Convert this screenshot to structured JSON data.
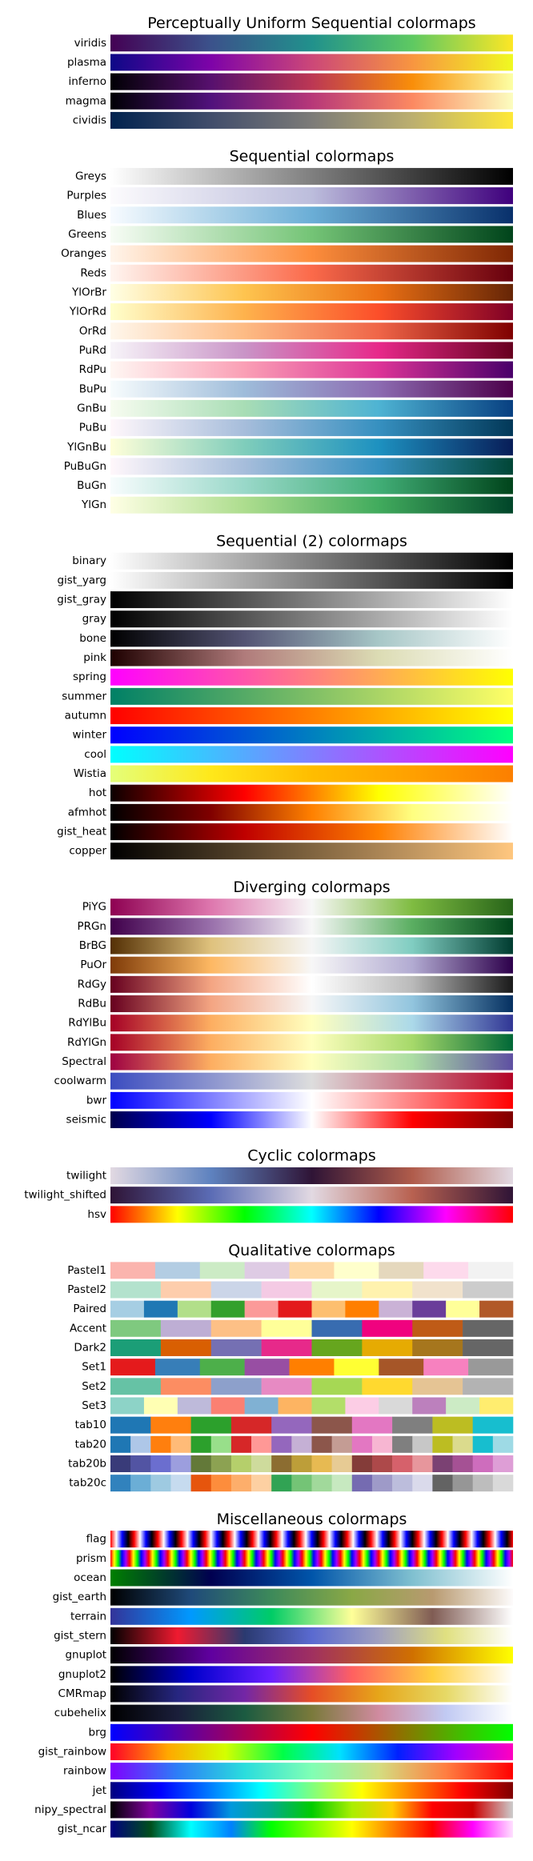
{
  "sections": [
    {
      "title": "Perceptually Uniform Sequential colormaps",
      "colormaps": [
        {
          "name": "viridis",
          "colors": [
            "#440154",
            "#3b528b",
            "#21918c",
            "#5ec962",
            "#fde725"
          ]
        },
        {
          "name": "plasma",
          "colors": [
            "#0d0887",
            "#7e03a8",
            "#cc4778",
            "#f89540",
            "#f0f921"
          ]
        },
        {
          "name": "inferno",
          "colors": [
            "#000004",
            "#57106e",
            "#bc3754",
            "#f98e09",
            "#fcffa4"
          ]
        },
        {
          "name": "magma",
          "colors": [
            "#000004",
            "#51127c",
            "#b73779",
            "#fc8961",
            "#fcfdbf"
          ]
        },
        {
          "name": "cividis",
          "colors": [
            "#00224e",
            "#414d6b",
            "#7c7b78",
            "#bcaf6f",
            "#fee838"
          ]
        }
      ]
    },
    {
      "title": "Sequential colormaps",
      "colormaps": [
        {
          "name": "Greys",
          "colors": [
            "#ffffff",
            "#000000"
          ]
        },
        {
          "name": "Purples",
          "colors": [
            "#fcfbfd",
            "#bcbddc",
            "#3f007d"
          ]
        },
        {
          "name": "Blues",
          "colors": [
            "#f7fbff",
            "#6baed6",
            "#08306b"
          ]
        },
        {
          "name": "Greens",
          "colors": [
            "#f7fcf5",
            "#74c476",
            "#00441b"
          ]
        },
        {
          "name": "Oranges",
          "colors": [
            "#fff5eb",
            "#fd8d3c",
            "#7f2704"
          ]
        },
        {
          "name": "Reds",
          "colors": [
            "#fff5f0",
            "#fb6a4a",
            "#67000d"
          ]
        },
        {
          "name": "YlOrBr",
          "colors": [
            "#ffffe5",
            "#fec44f",
            "#ec7014",
            "#662506"
          ]
        },
        {
          "name": "YlOrRd",
          "colors": [
            "#ffffcc",
            "#feb24c",
            "#fc4e2a",
            "#800026"
          ]
        },
        {
          "name": "OrRd",
          "colors": [
            "#fff7ec",
            "#fdbb84",
            "#ef6548",
            "#7f0000"
          ]
        },
        {
          "name": "PuRd",
          "colors": [
            "#f7f4f9",
            "#c994c7",
            "#e7298a",
            "#67001f"
          ]
        },
        {
          "name": "RdPu",
          "colors": [
            "#fff7f3",
            "#fa9fb5",
            "#dd3497",
            "#49006a"
          ]
        },
        {
          "name": "BuPu",
          "colors": [
            "#f7fcfd",
            "#9ebcda",
            "#8c6bb1",
            "#4d004b"
          ]
        },
        {
          "name": "GnBu",
          "colors": [
            "#f7fcf0",
            "#a8ddb5",
            "#4eb3d3",
            "#084081"
          ]
        },
        {
          "name": "PuBu",
          "colors": [
            "#fff7fb",
            "#a6bddb",
            "#3690c0",
            "#023858"
          ]
        },
        {
          "name": "YlGnBu",
          "colors": [
            "#ffffd9",
            "#7fcdbb",
            "#1d91c0",
            "#081d58"
          ]
        },
        {
          "name": "PuBuGn",
          "colors": [
            "#fff7fb",
            "#a6bddb",
            "#3690c0",
            "#014636"
          ]
        },
        {
          "name": "BuGn",
          "colors": [
            "#f7fcfd",
            "#99d8c9",
            "#41ae76",
            "#00441b"
          ]
        },
        {
          "name": "YlGn",
          "colors": [
            "#ffffe5",
            "#addd8e",
            "#41ab5d",
            "#004529"
          ]
        }
      ]
    },
    {
      "title": "Sequential (2) colormaps",
      "colormaps": [
        {
          "name": "binary",
          "colors": [
            "#ffffff",
            "#000000"
          ]
        },
        {
          "name": "gist_yarg",
          "colors": [
            "#ffffff",
            "#000000"
          ]
        },
        {
          "name": "gist_gray",
          "colors": [
            "#000000",
            "#ffffff"
          ]
        },
        {
          "name": "gray",
          "colors": [
            "#000000",
            "#ffffff"
          ]
        },
        {
          "name": "bone",
          "colors": [
            "#000000",
            "#545474",
            "#a7c7c7",
            "#ffffff"
          ]
        },
        {
          "name": "pink",
          "colors": [
            "#1e0000",
            "#b07b7b",
            "#dcdcb4",
            "#ffffff"
          ]
        },
        {
          "name": "spring",
          "colors": [
            "#ff00ff",
            "#ffff00"
          ]
        },
        {
          "name": "summer",
          "colors": [
            "#008066",
            "#ffff66"
          ]
        },
        {
          "name": "autumn",
          "colors": [
            "#ff0000",
            "#ffff00"
          ]
        },
        {
          "name": "winter",
          "colors": [
            "#0000ff",
            "#00ff80"
          ]
        },
        {
          "name": "cool",
          "colors": [
            "#00ffff",
            "#ff00ff"
          ]
        },
        {
          "name": "Wistia",
          "colors": [
            "#e4ff7a",
            "#ffe81a",
            "#ffbd00",
            "#ffa000",
            "#fc7f00"
          ]
        },
        {
          "name": "hot",
          "colors": [
            "#0b0000",
            "#ff0000",
            "#ffff00",
            "#ffffff"
          ]
        },
        {
          "name": "afmhot",
          "colors": [
            "#000000",
            "#800000",
            "#ff8000",
            "#ffff80",
            "#ffffff"
          ]
        },
        {
          "name": "gist_heat",
          "colors": [
            "#000000",
            "#bf0000",
            "#ff7f00",
            "#ffffff"
          ]
        },
        {
          "name": "copper",
          "colors": [
            "#000000",
            "#ffc77f"
          ]
        }
      ]
    },
    {
      "title": "Diverging colormaps",
      "colormaps": [
        {
          "name": "PiYG",
          "colors": [
            "#8e0152",
            "#de77ae",
            "#f7f7f7",
            "#7fbc41",
            "#276419"
          ]
        },
        {
          "name": "PRGn",
          "colors": [
            "#40004b",
            "#9970ab",
            "#f7f7f7",
            "#5aae61",
            "#00441b"
          ]
        },
        {
          "name": "BrBG",
          "colors": [
            "#543005",
            "#dfc27d",
            "#f5f5f5",
            "#80cdc1",
            "#003c30"
          ]
        },
        {
          "name": "PuOr",
          "colors": [
            "#7f3b08",
            "#fdb863",
            "#f7f7f7",
            "#b2abd2",
            "#2d004b"
          ]
        },
        {
          "name": "RdGy",
          "colors": [
            "#67001f",
            "#f4a582",
            "#ffffff",
            "#bababa",
            "#1a1a1a"
          ]
        },
        {
          "name": "RdBu",
          "colors": [
            "#67001f",
            "#f4a582",
            "#f7f7f7",
            "#92c5de",
            "#053061"
          ]
        },
        {
          "name": "RdYlBu",
          "colors": [
            "#a50026",
            "#fdae61",
            "#ffffbf",
            "#abd9e9",
            "#313695"
          ]
        },
        {
          "name": "RdYlGn",
          "colors": [
            "#a50026",
            "#fdae61",
            "#ffffbf",
            "#a6d96a",
            "#006837"
          ]
        },
        {
          "name": "Spectral",
          "colors": [
            "#9e0142",
            "#fdae61",
            "#ffffbf",
            "#abdda4",
            "#5e4fa2"
          ]
        },
        {
          "name": "coolwarm",
          "colors": [
            "#3b4cc0",
            "#dddddd",
            "#b40426"
          ]
        },
        {
          "name": "bwr",
          "colors": [
            "#0000ff",
            "#ffffff",
            "#ff0000"
          ]
        },
        {
          "name": "seismic",
          "colors": [
            "#00004c",
            "#0000ff",
            "#ffffff",
            "#ff0000",
            "#7f0000"
          ]
        }
      ]
    },
    {
      "title": "Cyclic colormaps",
      "colormaps": [
        {
          "name": "twilight",
          "colors": [
            "#e2d9e2",
            "#5e82bf",
            "#2f1436",
            "#b05c4b",
            "#e2d9e2"
          ]
        },
        {
          "name": "twilight_shifted",
          "colors": [
            "#2f1436",
            "#5b6cb5",
            "#e2d9e2",
            "#b86150",
            "#2f1436"
          ]
        },
        {
          "name": "hsv",
          "colors": [
            "#ff0000",
            "#ffff00",
            "#00ff00",
            "#00ffff",
            "#0000ff",
            "#ff00ff",
            "#ff0000"
          ]
        }
      ]
    },
    {
      "title": "Qualitative colormaps",
      "discrete": true,
      "colormaps": [
        {
          "name": "Pastel1",
          "colors": [
            "#fbb4ae",
            "#b3cde3",
            "#ccebc5",
            "#decbe4",
            "#fed9a6",
            "#ffffcc",
            "#e5d8bd",
            "#fddaec",
            "#f2f2f2"
          ]
        },
        {
          "name": "Pastel2",
          "colors": [
            "#b3e2cd",
            "#fdcdac",
            "#cbd5e8",
            "#f4cae4",
            "#e6f5c9",
            "#fff2ae",
            "#f1e2cc",
            "#cccccc"
          ]
        },
        {
          "name": "Paired",
          "colors": [
            "#a6cee3",
            "#1f78b4",
            "#b2df8a",
            "#33a02c",
            "#fb9a99",
            "#e31a1c",
            "#fdbf6f",
            "#ff7f00",
            "#cab2d6",
            "#6a3d9a",
            "#ffff99",
            "#b15928"
          ]
        },
        {
          "name": "Accent",
          "colors": [
            "#7fc97f",
            "#beaed4",
            "#fdc086",
            "#ffff99",
            "#386cb0",
            "#f0027f",
            "#bf5b17",
            "#666666"
          ]
        },
        {
          "name": "Dark2",
          "colors": [
            "#1b9e77",
            "#d95f02",
            "#7570b3",
            "#e7298a",
            "#66a61e",
            "#e6ab02",
            "#a6761d",
            "#666666"
          ]
        },
        {
          "name": "Set1",
          "colors": [
            "#e41a1c",
            "#377eb8",
            "#4daf4a",
            "#984ea3",
            "#ff7f00",
            "#ffff33",
            "#a65628",
            "#f781bf",
            "#999999"
          ]
        },
        {
          "name": "Set2",
          "colors": [
            "#66c2a5",
            "#fc8d62",
            "#8da0cb",
            "#e78ac3",
            "#a6d854",
            "#ffd92f",
            "#e5c494",
            "#b3b3b3"
          ]
        },
        {
          "name": "Set3",
          "colors": [
            "#8dd3c7",
            "#ffffb3",
            "#bebada",
            "#fb8072",
            "#80b1d3",
            "#fdb462",
            "#b3de69",
            "#fccde5",
            "#d9d9d9",
            "#bc80bd",
            "#ccebc5",
            "#ffed6f"
          ]
        },
        {
          "name": "tab10",
          "colors": [
            "#1f77b4",
            "#ff7f0e",
            "#2ca02c",
            "#d62728",
            "#9467bd",
            "#8c564b",
            "#e377c2",
            "#7f7f7f",
            "#bcbd22",
            "#17becf"
          ]
        },
        {
          "name": "tab20",
          "colors": [
            "#1f77b4",
            "#aec7e8",
            "#ff7f0e",
            "#ffbb78",
            "#2ca02c",
            "#98df8a",
            "#d62728",
            "#ff9896",
            "#9467bd",
            "#c5b0d5",
            "#8c564b",
            "#c49c94",
            "#e377c2",
            "#f7b6d2",
            "#7f7f7f",
            "#c7c7c7",
            "#bcbd22",
            "#dbdb8d",
            "#17becf",
            "#9edae5"
          ]
        },
        {
          "name": "tab20b",
          "colors": [
            "#393b79",
            "#5254a3",
            "#6b6ecf",
            "#9c9ede",
            "#637939",
            "#8ca252",
            "#b5cf6b",
            "#cedb9c",
            "#8c6d31",
            "#bd9e39",
            "#e7ba52",
            "#e7cb94",
            "#843c39",
            "#ad494a",
            "#d6616b",
            "#e7969c",
            "#7b4173",
            "#a55194",
            "#ce6dbd",
            "#de9ed6"
          ]
        },
        {
          "name": "tab20c",
          "colors": [
            "#3182bd",
            "#6baed6",
            "#9ecae1",
            "#c6dbef",
            "#e6550d",
            "#fd8d3c",
            "#fdae6b",
            "#fdd0a2",
            "#31a354",
            "#74c476",
            "#a1d99b",
            "#c7e9c0",
            "#756bb1",
            "#9e9ac8",
            "#bcbddc",
            "#dadaeb",
            "#636363",
            "#969696",
            "#bdbdbd",
            "#d9d9d9"
          ]
        }
      ]
    },
    {
      "title": "Miscellaneous colormaps",
      "colormaps": [
        {
          "name": "flag",
          "colors": [
            "#ff0000",
            "#ffffff",
            "#0000ff",
            "#000000"
          ],
          "cycles": 17
        },
        {
          "name": "prism",
          "colors": [
            "#ff0000",
            "#ffff00",
            "#00ff00",
            "#0000ff",
            "#a000ff"
          ],
          "cycles": 21
        },
        {
          "name": "ocean",
          "colors": [
            "#008000",
            "#000050",
            "#0055aa",
            "#80c0d0",
            "#ffffff"
          ]
        },
        {
          "name": "gist_earth",
          "colors": [
            "#000000",
            "#1f4a7a",
            "#3d8a5a",
            "#8aa846",
            "#b89a70",
            "#fdfbfb"
          ]
        },
        {
          "name": "terrain",
          "colors": [
            "#333399",
            "#0099ff",
            "#00cc66",
            "#ffff99",
            "#805c54",
            "#ffffff"
          ]
        },
        {
          "name": "gist_stern",
          "colors": [
            "#000000",
            "#f01a30",
            "#2a3a70",
            "#5a6ad0",
            "#a0a0c0",
            "#e0e080",
            "#ffffff"
          ]
        },
        {
          "name": "gnuplot",
          "colors": [
            "#000000",
            "#6000a0",
            "#a03060",
            "#d07000",
            "#ffff00"
          ]
        },
        {
          "name": "gnuplot2",
          "colors": [
            "#000000",
            "#0000cc",
            "#6a20ff",
            "#ff6060",
            "#ffd040",
            "#ffffff"
          ]
        },
        {
          "name": "CMRmap",
          "colors": [
            "#000000",
            "#262680",
            "#7326a6",
            "#e64d26",
            "#e6a61a",
            "#e6d966",
            "#ffffff"
          ]
        },
        {
          "name": "cubehelix",
          "colors": [
            "#000000",
            "#1a1e3a",
            "#1b5b41",
            "#7a7a3b",
            "#d08ba0",
            "#c1caf3",
            "#ffffff"
          ]
        },
        {
          "name": "brg",
          "colors": [
            "#0000ff",
            "#ff0000",
            "#00ff00"
          ]
        },
        {
          "name": "gist_rainbow",
          "colors": [
            "#ff0028",
            "#ffa800",
            "#d3ff00",
            "#00ff47",
            "#00e0ff",
            "#0020ff",
            "#a000ff",
            "#ff00bf"
          ]
        },
        {
          "name": "rainbow",
          "colors": [
            "#8000ff",
            "#2c7ef7",
            "#2adddd",
            "#80ffb4",
            "#d4dd80",
            "#ff7e41",
            "#ff0000"
          ]
        },
        {
          "name": "jet",
          "colors": [
            "#00007f",
            "#0000ff",
            "#007fff",
            "#00ffff",
            "#7fff7f",
            "#ffff00",
            "#ff7f00",
            "#ff0000",
            "#7f0000"
          ]
        },
        {
          "name": "nipy_spectral",
          "colors": [
            "#000000",
            "#8200a0",
            "#0000dd",
            "#0099dd",
            "#00aa88",
            "#00cc00",
            "#aaee00",
            "#ffcc00",
            "#ff0000",
            "#cc0000",
            "#cccccc"
          ]
        },
        {
          "name": "gist_ncar",
          "colors": [
            "#000080",
            "#004f1c",
            "#00ffff",
            "#0080ff",
            "#00ff00",
            "#80ff00",
            "#ffff00",
            "#ff8000",
            "#ff0000",
            "#ff00ff",
            "#ffe0ff"
          ]
        }
      ]
    }
  ]
}
